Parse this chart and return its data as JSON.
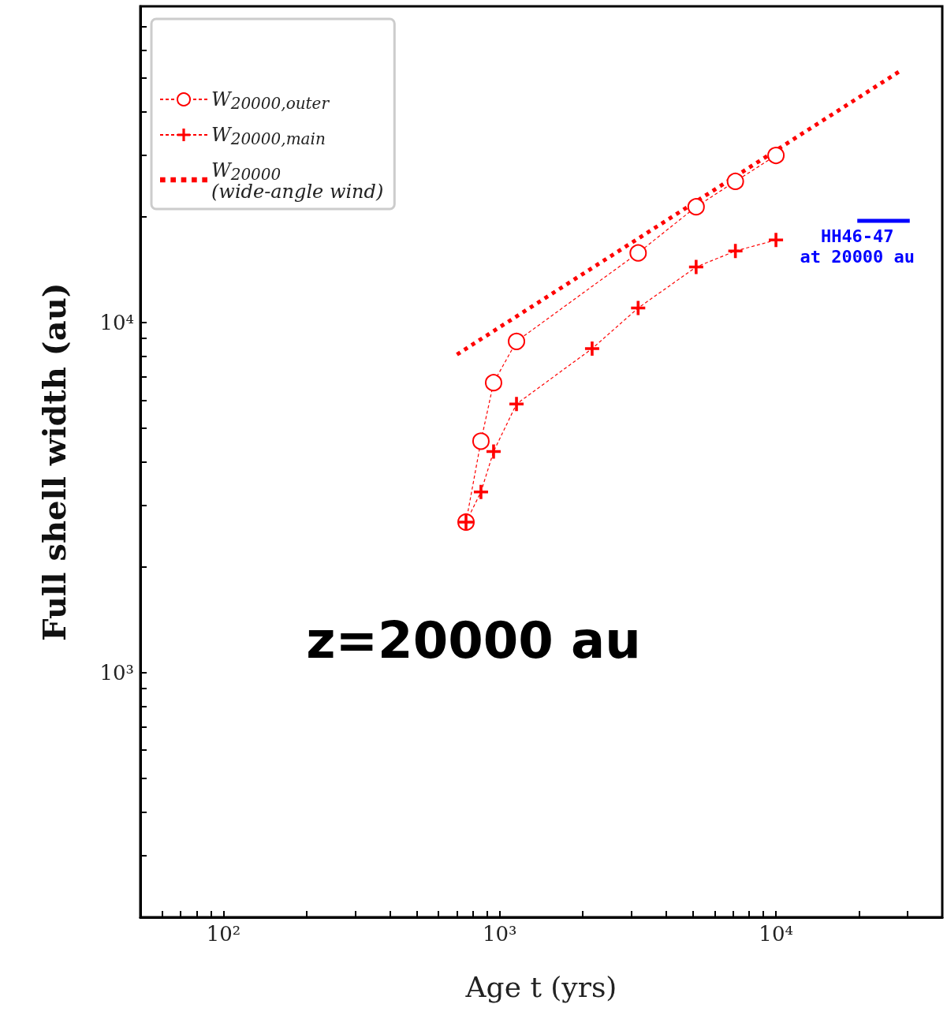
{
  "chart_data": {
    "type": "line",
    "xlabel": "Age t (yrs)",
    "ylabel": "Full shell width (au)",
    "annotations": [
      "z=20000 au"
    ],
    "log": "xy",
    "grid": false,
    "legend": "top left",
    "xlim": [
      50,
      40000
    ],
    "xticks": [
      {
        "value": 60,
        "label": null
      },
      {
        "value": 70,
        "label": null
      },
      {
        "value": 80,
        "label": null
      },
      {
        "value": 90,
        "label": null
      },
      {
        "value": 100,
        "label": "10²"
      },
      {
        "value": 200,
        "label": null
      },
      {
        "value": 300,
        "label": null
      },
      {
        "value": 400,
        "label": null
      },
      {
        "value": 500,
        "label": null
      },
      {
        "value": 600,
        "label": null
      },
      {
        "value": 700,
        "label": null
      },
      {
        "value": 800,
        "label": null
      },
      {
        "value": 900,
        "label": null
      },
      {
        "value": 1000,
        "label": "10³"
      },
      {
        "value": 2000,
        "label": null
      },
      {
        "value": 3000,
        "label": null
      },
      {
        "value": 4000,
        "label": null
      },
      {
        "value": 5000,
        "label": null
      },
      {
        "value": 6000,
        "label": null
      },
      {
        "value": 7000,
        "label": null
      },
      {
        "value": 8000,
        "label": null
      },
      {
        "value": 9000,
        "label": null
      },
      {
        "value": 10000,
        "label": "10⁴"
      },
      {
        "value": 20000,
        "label": null
      },
      {
        "value": 30000,
        "label": null
      }
    ],
    "ylim": [
      200,
      80000
    ],
    "yticks": [
      {
        "value": 300,
        "label": null
      },
      {
        "value": 400,
        "label": null
      },
      {
        "value": 500,
        "label": null
      },
      {
        "value": 600,
        "label": null
      },
      {
        "value": 700,
        "label": null
      },
      {
        "value": 800,
        "label": null
      },
      {
        "value": 900,
        "label": null
      },
      {
        "value": 1000,
        "label": "10³"
      },
      {
        "value": 2000,
        "label": null
      },
      {
        "value": 3000,
        "label": null
      },
      {
        "value": 4000,
        "label": null
      },
      {
        "value": 5000,
        "label": null
      },
      {
        "value": 6000,
        "label": null
      },
      {
        "value": 7000,
        "label": null
      },
      {
        "value": 8000,
        "label": null
      },
      {
        "value": 9000,
        "label": null
      },
      {
        "value": 10000,
        "label": "10⁴"
      },
      {
        "value": 20000,
        "label": null
      },
      {
        "value": 30000,
        "label": null
      },
      {
        "value": 40000,
        "label": null
      },
      {
        "value": 50000,
        "label": null
      },
      {
        "value": 60000,
        "label": null
      },
      {
        "value": 70000,
        "label": null
      }
    ],
    "series": [
      {
        "name": "W$_{20000,outer}$",
        "color": "#ff0000",
        "marker": "circle",
        "line_style": "dashed",
        "x": [
          755,
          855,
          950,
          1150,
          3170,
          5140,
          7130,
          10000
        ],
        "values": [
          2690,
          4580,
          6730,
          8830,
          15800,
          21400,
          25300,
          30000
        ]
      },
      {
        "name": "W$_{20000,main}$",
        "color": "#ff0000",
        "marker": "cross",
        "line_style": "dashed",
        "x": [
          755,
          855,
          950,
          1150,
          2160,
          3170,
          5140,
          7130,
          10000
        ],
        "values": [
          2690,
          3280,
          4280,
          5850,
          8420,
          11000,
          14400,
          16000,
          17200
        ]
      },
      {
        "name": "W$_{20000}$\n(wide-angle wind)",
        "color": "#ff0000",
        "marker": "none",
        "line_style": "dotted",
        "x": [
          700,
          28600
        ],
        "values": [
          8100,
          52700
        ]
      },
      {
        "name": "HH46-47\nat 20000 au",
        "color": "#0000ff",
        "marker": "none",
        "line_style": "solid",
        "x": [
          19700,
          30500
        ],
        "values": [
          19500,
          19500
        ]
      }
    ]
  }
}
